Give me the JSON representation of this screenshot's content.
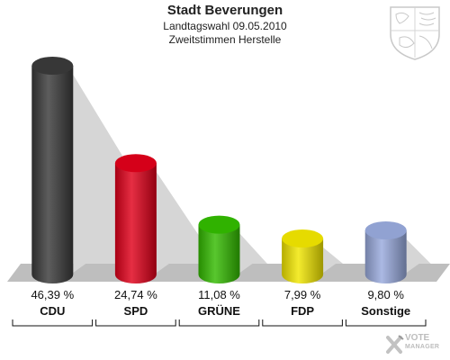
{
  "header": {
    "title": "Stadt Beverungen",
    "subtitle1": "Landtagswahl 09.05.2010",
    "subtitle2": "Zweitstimmen Herstelle"
  },
  "chart_data": {
    "type": "bar",
    "title": "Stadt Beverungen",
    "subtitle": "Landtagswahl 09.05.2010 Zweitstimmen Herstelle",
    "xlabel": "",
    "ylabel": "",
    "ylim": [
      0,
      50
    ],
    "categories": [
      "CDU",
      "SPD",
      "GRÜNE",
      "FDP",
      "Sonstige"
    ],
    "values": [
      46.39,
      24.74,
      11.08,
      7.99,
      9.8
    ],
    "value_labels": [
      "46,39 %",
      "24,74 %",
      "11,08 %",
      "7,99 %",
      "9,80 %"
    ],
    "colors": [
      "#3a3a3a",
      "#e0001a",
      "#33bb00",
      "#f2e600",
      "#99aadd"
    ]
  },
  "logo": {
    "line1": "VOTE",
    "line2": "MANAGER"
  },
  "icons": {
    "crest": "coat-of-arms-icon",
    "logo_mark": "vote-manager-x-icon"
  }
}
